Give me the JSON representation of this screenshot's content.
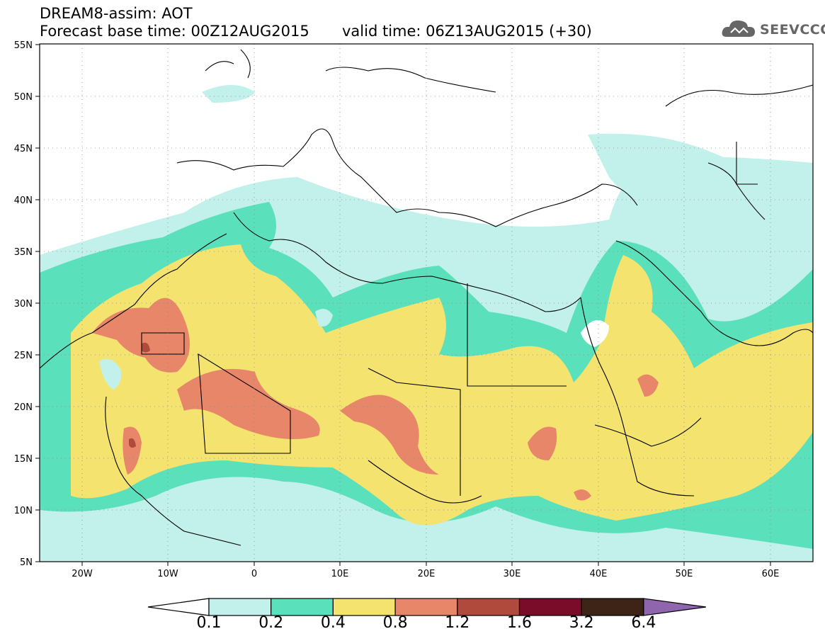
{
  "header": {
    "title_line1": "DREAM8-assim: AOT",
    "title_line2": "Forecast base time: 00Z12AUG2015",
    "valid_time": "valid time: 06Z13AUG2015 (+30)",
    "logo_text": "SEEVCCC"
  },
  "axes": {
    "lat_labels": [
      "55N",
      "50N",
      "45N",
      "40N",
      "35N",
      "30N",
      "25N",
      "20N",
      "15N",
      "10N",
      "5N"
    ],
    "lon_labels": [
      "20W",
      "10W",
      "0",
      "10E",
      "20E",
      "30E",
      "40E",
      "50E",
      "60E"
    ]
  },
  "colorbar": {
    "levels": [
      "0.1",
      "0.2",
      "0.4",
      "0.8",
      "1.2",
      "1.6",
      "3.2",
      "6.4"
    ],
    "colors": [
      "#c2f0ea",
      "#5ae0bb",
      "#f5e36f",
      "#e8866a",
      "#b04a3c",
      "#7a0c2a",
      "#3d2417",
      "#8f66ad"
    ],
    "under_color": "#ffffff"
  }
}
